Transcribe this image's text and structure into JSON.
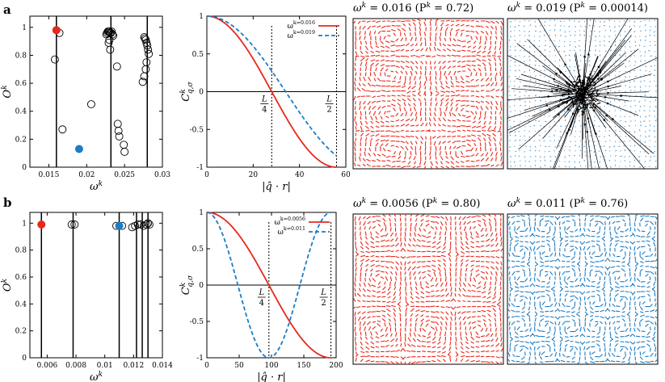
{
  "figure": {
    "panel_a_label": "a",
    "panel_b_label": "b"
  },
  "colors": {
    "red": "#e8281c",
    "blue": "#1c7cc4",
    "black": "#000000"
  },
  "chart_data": [
    {
      "id": "a-overlap",
      "type": "scatter",
      "xlabel": "ω^k",
      "ylabel": "O^k",
      "xlim": [
        0.0125,
        0.03
      ],
      "ylim": [
        0,
        1.08
      ],
      "xticks": [
        0.015,
        0.02,
        0.025,
        0.03
      ],
      "xticklabels": [
        "0.015",
        "0.02",
        "0.025",
        "0.03"
      ],
      "yticks": [
        0,
        0.2,
        0.4,
        0.6,
        0.8,
        1
      ],
      "yticklabels": [
        "0",
        "0.2",
        "0.4",
        "0.6",
        "0.8",
        "1"
      ],
      "vlines": [
        0.016,
        0.0232,
        0.028
      ],
      "open_points": {
        "x": [
          0.0158,
          0.0164,
          0.0168,
          0.0206,
          0.0226,
          0.0227,
          0.0228,
          0.0229,
          0.023,
          0.0231,
          0.0232,
          0.0233,
          0.0234,
          0.0235,
          0.023,
          0.0229,
          0.0231,
          0.024,
          0.0241,
          0.0242,
          0.0243,
          0.0249,
          0.025,
          0.0276,
          0.0277,
          0.0278,
          0.0279,
          0.028,
          0.0281,
          0.0282,
          0.0279,
          0.0278,
          0.0276,
          0.0274
        ],
        "y": [
          0.77,
          0.96,
          0.27,
          0.45,
          0.95,
          0.96,
          0.97,
          0.97,
          0.97,
          0.96,
          0.96,
          0.97,
          0.95,
          0.94,
          0.91,
          0.89,
          0.84,
          0.72,
          0.31,
          0.26,
          0.22,
          0.16,
          0.11,
          0.93,
          0.92,
          0.91,
          0.89,
          0.87,
          0.84,
          0.81,
          0.75,
          0.7,
          0.65,
          0.61
        ]
      },
      "filled_points": [
        {
          "x": 0.016,
          "y": 0.98,
          "color": "#e8281c"
        },
        {
          "x": 0.019,
          "y": 0.13,
          "color": "#1c7cc4"
        }
      ]
    },
    {
      "id": "a-correlation",
      "type": "line",
      "xlabel": "|q̂ · r|",
      "ylabel": "C^k_{q,σ}",
      "xlim": [
        0,
        60
      ],
      "ylim": [
        -1,
        1
      ],
      "xticks": [
        0,
        20,
        40,
        60
      ],
      "xticklabels": [
        "0",
        "20",
        "40",
        "60"
      ],
      "yticks": [
        -1,
        -0.5,
        0,
        0.5,
        1
      ],
      "yticklabels": [
        "-1",
        "-0.5",
        "0",
        "0.5",
        "1"
      ],
      "markers": [
        {
          "x": 28,
          "label": "L/4"
        },
        {
          "x": 56,
          "label": "L/2"
        }
      ],
      "series": [
        {
          "name": "ω^k=0.016",
          "color": "#e8281c",
          "dash": "solid",
          "period": 112,
          "xmax": 56
        },
        {
          "name": "ω^k=0.019",
          "color": "#1c7cc4",
          "dash": "dashed",
          "period": 136,
          "xmax": 56
        }
      ]
    },
    {
      "id": "b-overlap",
      "type": "scatter",
      "xlabel": "ω^k",
      "ylabel": "O^k",
      "xlim": [
        0.0048,
        0.014
      ],
      "ylim": [
        0,
        1.08
      ],
      "xticks": [
        0.006,
        0.008,
        0.01,
        0.012,
        0.014
      ],
      "xticklabels": [
        "0.006",
        "0.008",
        "0.01",
        "0.012",
        "0.014"
      ],
      "yticks": [
        0,
        0.2,
        0.4,
        0.6,
        0.8,
        1
      ],
      "yticklabels": [
        "0",
        "0.2",
        "0.4",
        "0.6",
        "0.8",
        "1"
      ],
      "vlines": [
        0.0056,
        0.0078,
        0.011,
        0.0122,
        0.0126,
        0.013
      ],
      "open_points": {
        "x": [
          0.0077,
          0.0079,
          0.0108,
          0.0112,
          0.0119,
          0.0121,
          0.0123,
          0.0125,
          0.0127,
          0.0129,
          0.013,
          0.0131
        ],
        "y": [
          0.99,
          0.99,
          0.98,
          0.98,
          0.97,
          0.98,
          0.99,
          0.99,
          0.98,
          0.99,
          1.0,
          0.99
        ]
      },
      "filled_points": [
        {
          "x": 0.0056,
          "y": 0.99,
          "color": "#e8281c"
        },
        {
          "x": 0.011,
          "y": 0.98,
          "color": "#1c7cc4"
        }
      ]
    },
    {
      "id": "b-correlation",
      "type": "line",
      "xlabel": "|q̂ · r|",
      "ylabel": "C^k_{q,σ}",
      "xlim": [
        0,
        200
      ],
      "ylim": [
        -1,
        1
      ],
      "xticks": [
        0,
        50,
        100,
        150,
        200
      ],
      "xticklabels": [
        "0",
        "50",
        "100",
        "150",
        "200"
      ],
      "yticks": [
        -1,
        -0.5,
        0,
        0.5,
        1
      ],
      "yticklabels": [
        "-1",
        "-0.5",
        "0",
        "0.5",
        "1"
      ],
      "markers": [
        {
          "x": 96,
          "label": "L/4"
        },
        {
          "x": 192,
          "label": "L/2"
        }
      ],
      "series": [
        {
          "name": "ω^k=0.0056",
          "color": "#e8281c",
          "dash": "solid",
          "period": 384,
          "xmax": 192
        },
        {
          "name": "ω^k=0.011",
          "color": "#1c7cc4",
          "dash": "dashed",
          "period": 192,
          "xmax": 192
        }
      ]
    }
  ],
  "field_panels": [
    {
      "id": "a-field-1",
      "title_omega": "ω^k = 0.016",
      "title_p": "(P^k = 0.72)",
      "color": "#e8281c",
      "pattern": "vortex-coarse"
    },
    {
      "id": "a-field-2",
      "title_omega": "ω^k = 0.019",
      "title_p": "(P^k = 0.00014)",
      "color": "#1c7cc4",
      "pattern": "localized"
    },
    {
      "id": "b-field-1",
      "title_omega": "ω^k = 0.0056",
      "title_p": "(P^k = 0.80)",
      "color": "#e8281c",
      "pattern": "vortex-large"
    },
    {
      "id": "b-field-2",
      "title_omega": "ω^k = 0.011",
      "title_p": "(P^k = 0.76)",
      "color": "#1c7cc4",
      "pattern": "vortex-small"
    }
  ]
}
